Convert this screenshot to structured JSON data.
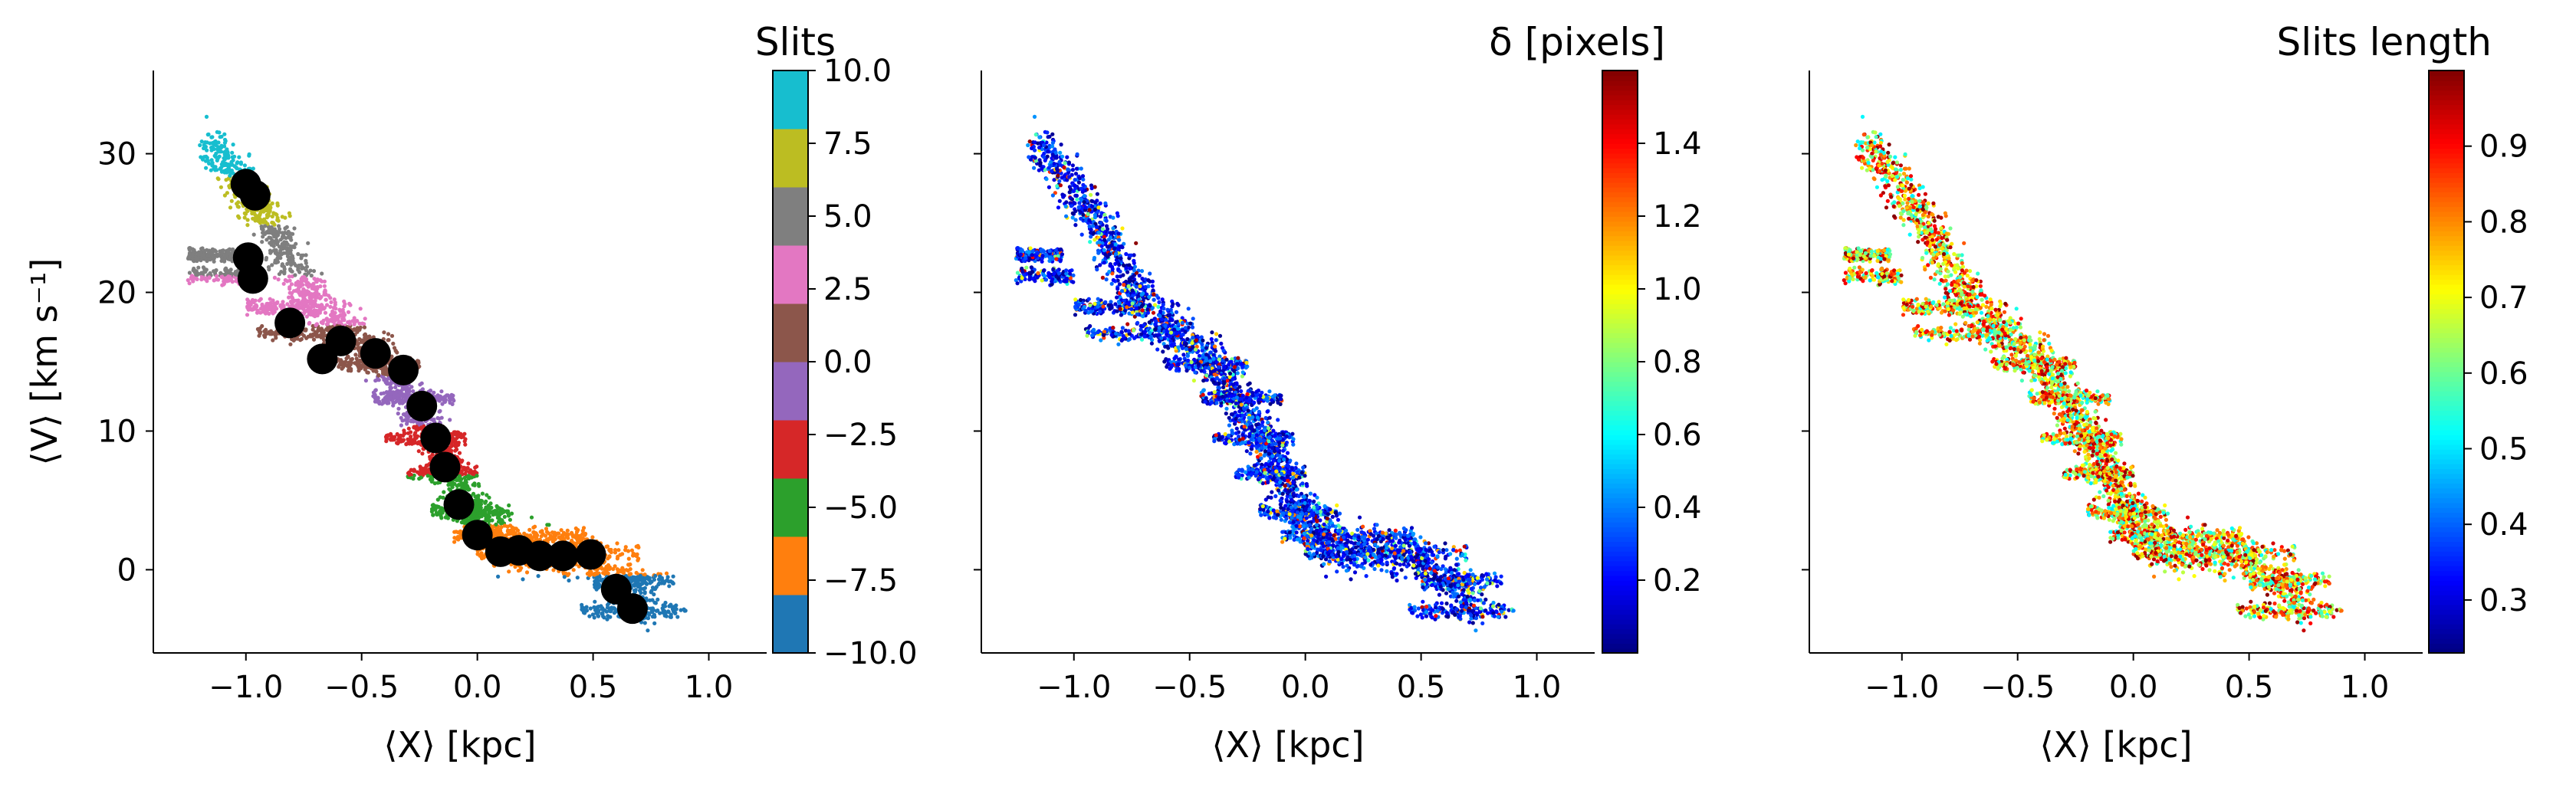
{
  "chart_data": [
    {
      "type": "scatter",
      "panel": "left",
      "xlabel": "⟨X⟩ [kpc]",
      "ylabel": "⟨V⟩ [km s⁻¹]",
      "xlim": [
        -1.4,
        1.25
      ],
      "ylim": [
        -6,
        36
      ],
      "xticks": [
        -1.0,
        -0.5,
        0.0,
        0.5,
        1.0
      ],
      "xtick_labels": [
        "−1.0",
        "−0.5",
        "0.0",
        "0.5",
        "1.0"
      ],
      "yticks": [
        0,
        10,
        20,
        30
      ],
      "ytick_labels": [
        "0",
        "10",
        "20",
        "30"
      ],
      "colorbar": {
        "title": "Slits",
        "type": "discrete",
        "range": [
          -10,
          10
        ],
        "ticks": [
          -10,
          -7.5,
          -5,
          -2.5,
          0,
          2.5,
          5,
          7.5,
          10
        ],
        "tick_labels": [
          "−10.0",
          "−7.5",
          "−5.0",
          "−2.5",
          "0.0",
          "2.5",
          "5.0",
          "7.5",
          "10.0"
        ],
        "colors": [
          "#1f77b4",
          "#ff7f0e",
          "#2ca02c",
          "#d62728",
          "#9467bd",
          "#8c564b",
          "#e377c2",
          "#7f7f7f",
          "#bcbd22",
          "#17becf"
        ]
      },
      "series": [
        {
          "marker": "large-black-circle",
          "color": "#000000",
          "x": [
            -1.0,
            -0.96,
            -0.99,
            -0.97,
            -0.81,
            -0.67,
            -0.59,
            -0.44,
            -0.32,
            -0.24,
            -0.18,
            -0.14,
            -0.08,
            0.0,
            0.1,
            0.18,
            0.27,
            0.37,
            0.49,
            0.6,
            0.67
          ],
          "y": [
            27.8,
            27.0,
            22.5,
            21.0,
            17.8,
            15.2,
            16.5,
            15.6,
            14.4,
            11.8,
            9.5,
            7.4,
            4.7,
            2.5,
            1.3,
            1.4,
            1.0,
            1.0,
            1.1,
            -1.4,
            -2.8
          ]
        }
      ]
    },
    {
      "type": "scatter",
      "panel": "middle",
      "xlabel": "⟨X⟩ [kpc]",
      "xlim": [
        -1.4,
        1.25
      ],
      "ylim": [
        -6,
        36
      ],
      "xticks": [
        -1.0,
        -0.5,
        0.0,
        0.5,
        1.0
      ],
      "xtick_labels": [
        "−1.0",
        "−0.5",
        "0.0",
        "0.5",
        "1.0"
      ],
      "colorbar": {
        "title": "δ [pixels]",
        "colormap": "jet",
        "range": [
          0.0,
          1.6
        ],
        "ticks": [
          0.2,
          0.4,
          0.6,
          0.8,
          1.0,
          1.2,
          1.4
        ],
        "tick_labels": [
          "0.2",
          "0.4",
          "0.6",
          "0.8",
          "1.0",
          "1.2",
          "1.4"
        ]
      }
    },
    {
      "type": "scatter",
      "panel": "right",
      "xlabel": "⟨X⟩ [kpc]",
      "xlim": [
        -1.4,
        1.25
      ],
      "ylim": [
        -6,
        36
      ],
      "xticks": [
        -1.0,
        -0.5,
        0.0,
        0.5,
        1.0
      ],
      "xtick_labels": [
        "−1.0",
        "−0.5",
        "0.0",
        "0.5",
        "1.0"
      ],
      "colorbar": {
        "title": "Slits length",
        "colormap": "jet",
        "range": [
          0.23,
          1.0
        ],
        "ticks": [
          0.3,
          0.4,
          0.5,
          0.6,
          0.7,
          0.8,
          0.9
        ],
        "tick_labels": [
          "0.3",
          "0.4",
          "0.5",
          "0.6",
          "0.7",
          "0.8",
          "0.9"
        ]
      }
    }
  ]
}
